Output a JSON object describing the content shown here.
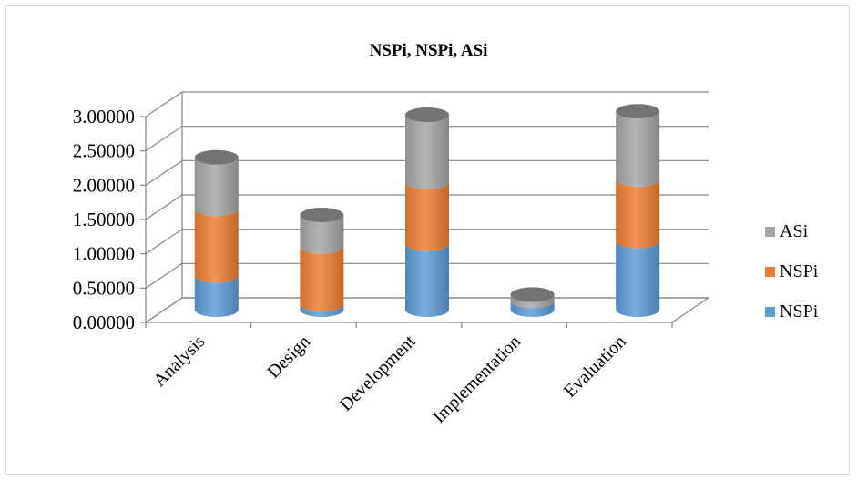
{
  "chart_data": {
    "type": "bar",
    "subtype": "stacked-3d-cylinder",
    "title": "NSPi, NSPi, ASi",
    "categories": [
      "Analysis",
      "Design",
      "Development",
      "Implementation",
      "Evaluation"
    ],
    "series": [
      {
        "name": "NSPi",
        "color": "#5b9bd5",
        "values": [
          0.5,
          0.08,
          0.96,
          0.13,
          1.0
        ]
      },
      {
        "name": "NSPi",
        "color": "#ed7d31",
        "values": [
          0.97,
          0.84,
          0.9,
          0.0,
          0.9
        ]
      },
      {
        "name": "ASi",
        "color": "#a5a5a5",
        "values": [
          0.75,
          0.46,
          0.98,
          0.09,
          0.99
        ]
      }
    ],
    "ylim": [
      0,
      3
    ],
    "yticks": [
      "0.00000",
      "0.50000",
      "1.00000",
      "1.50000",
      "2.00000",
      "2.50000",
      "3.00000"
    ],
    "legend_position": "right",
    "legend_order": [
      "ASi",
      "NSPi",
      "NSPi"
    ],
    "grid": true,
    "xlabel": "",
    "ylabel": ""
  }
}
